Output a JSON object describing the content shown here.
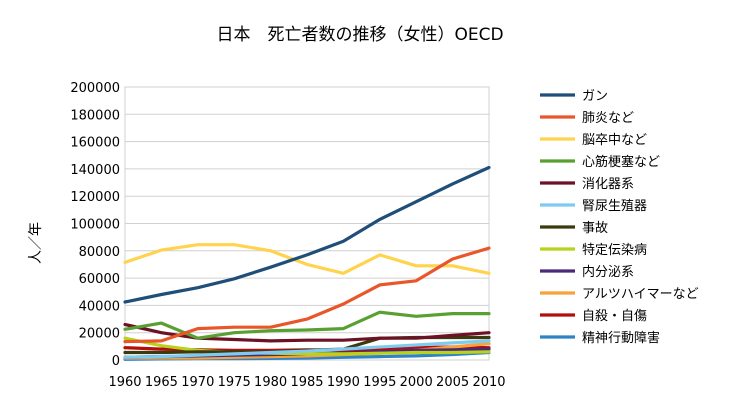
{
  "chart_data": {
    "type": "line",
    "title": "日本　死亡者数の推移（女性）OECD",
    "xlabel": "",
    "ylabel": "人／年",
    "x": [
      "1960",
      "1965",
      "1970",
      "1975",
      "1980",
      "1985",
      "1990",
      "1995",
      "2000",
      "2005",
      "2010"
    ],
    "ylim": [
      0,
      200000
    ],
    "yticks": [
      "0",
      "20000",
      "40000",
      "60000",
      "80000",
      "100000",
      "120000",
      "140000",
      "160000",
      "180000",
      "200000"
    ],
    "grid": true,
    "legend_position": "right",
    "series": [
      {
        "name": "ガン",
        "color": "#1f4e79",
        "values": [
          42500,
          48000,
          53000,
          59500,
          68000,
          77000,
          87000,
          103000,
          116000,
          129000,
          141000
        ]
      },
      {
        "name": "肺炎など",
        "color": "#e8562a",
        "values": [
          13500,
          14000,
          23000,
          24000,
          24000,
          30000,
          41000,
          55000,
          58000,
          74000,
          82000
        ]
      },
      {
        "name": "脳卒中など",
        "color": "#ffd34e",
        "values": [
          71500,
          80500,
          84500,
          84500,
          80000,
          70000,
          63500,
          77000,
          69000,
          69000,
          63500
        ]
      },
      {
        "name": "心筋梗塞など",
        "color": "#58a032",
        "values": [
          22500,
          27000,
          16000,
          20000,
          21500,
          22000,
          23000,
          35000,
          32000,
          34000,
          34000
        ]
      },
      {
        "name": "消化器系",
        "color": "#6d1125",
        "values": [
          26000,
          20000,
          16000,
          15000,
          14000,
          14500,
          14500,
          16000,
          16000,
          18000,
          20000
        ]
      },
      {
        "name": "腎尿生殖器",
        "color": "#7ecbf0",
        "values": [
          2000,
          2500,
          3500,
          4500,
          5500,
          6500,
          8000,
          9500,
          11000,
          12500,
          14000
        ]
      },
      {
        "name": "事故",
        "color": "#3b3b10",
        "values": [
          5500,
          5500,
          6000,
          6000,
          6000,
          7000,
          8000,
          16000,
          16500,
          16500,
          16500
        ]
      },
      {
        "name": "特定伝染病",
        "color": "#b9d21c",
        "values": [
          16000,
          10500,
          7000,
          5500,
          5000,
          4500,
          4500,
          5000,
          5500,
          5500,
          6000
        ]
      },
      {
        "name": "内分泌系",
        "color": "#4a2a78",
        "values": [
          2000,
          2500,
          3000,
          3500,
          4000,
          4500,
          5000,
          6000,
          7000,
          7500,
          8000
        ]
      },
      {
        "name": "アルツハイマーなど",
        "color": "#f7a23a",
        "values": [
          1500,
          1500,
          1500,
          2000,
          2500,
          3000,
          4000,
          5000,
          7000,
          9500,
          12000
        ]
      },
      {
        "name": "自殺・自傷",
        "color": "#b30d0d",
        "values": [
          9000,
          8000,
          7500,
          7000,
          7000,
          7500,
          7000,
          7500,
          9000,
          9500,
          9000
        ]
      },
      {
        "name": "精神行動障害",
        "color": "#2e83c4",
        "values": [
          500,
          800,
          1000,
          1000,
          1200,
          1500,
          2000,
          2500,
          3000,
          4000,
          5500
        ]
      }
    ]
  }
}
